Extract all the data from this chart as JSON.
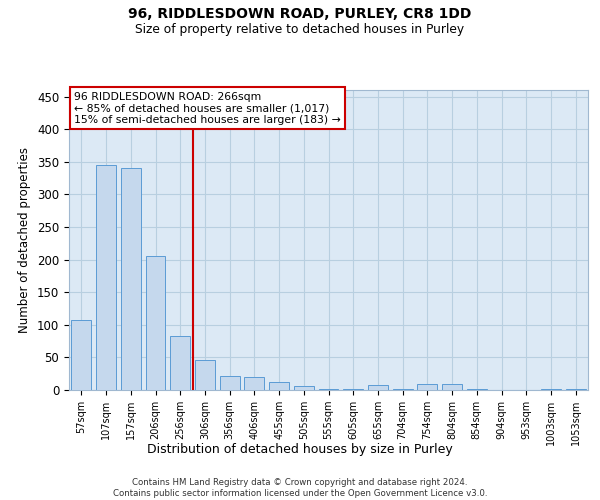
{
  "title1": "96, RIDDLESDOWN ROAD, PURLEY, CR8 1DD",
  "title2": "Size of property relative to detached houses in Purley",
  "xlabel": "Distribution of detached houses by size in Purley",
  "ylabel": "Number of detached properties",
  "bins": [
    "57sqm",
    "107sqm",
    "157sqm",
    "206sqm",
    "256sqm",
    "306sqm",
    "356sqm",
    "406sqm",
    "455sqm",
    "505sqm",
    "555sqm",
    "605sqm",
    "655sqm",
    "704sqm",
    "754sqm",
    "804sqm",
    "854sqm",
    "904sqm",
    "953sqm",
    "1003sqm",
    "1053sqm"
  ],
  "values": [
    107,
    345,
    340,
    205,
    83,
    46,
    22,
    20,
    12,
    6,
    1,
    1,
    8,
    1,
    9,
    9,
    1,
    0,
    0,
    1,
    1
  ],
  "bar_color": "#c5d8ed",
  "bar_edge_color": "#5b9bd5",
  "annotation_text_line1": "96 RIDDLESDOWN ROAD: 266sqm",
  "annotation_text_line2": "← 85% of detached houses are smaller (1,017)",
  "annotation_text_line3": "15% of semi-detached houses are larger (183) →",
  "annotation_box_color": "#ffffff",
  "annotation_border_color": "#cc0000",
  "vline_color": "#cc0000",
  "ylim": [
    0,
    460
  ],
  "yticks": [
    0,
    50,
    100,
    150,
    200,
    250,
    300,
    350,
    400,
    450
  ],
  "footer_line1": "Contains HM Land Registry data © Crown copyright and database right 2024.",
  "footer_line2": "Contains public sector information licensed under the Open Government Licence v3.0.",
  "bg_color": "#ffffff",
  "plot_bg_color": "#dce9f5",
  "grid_color": "#b8cfe0",
  "fig_width": 6.0,
  "fig_height": 5.0,
  "dpi": 100
}
